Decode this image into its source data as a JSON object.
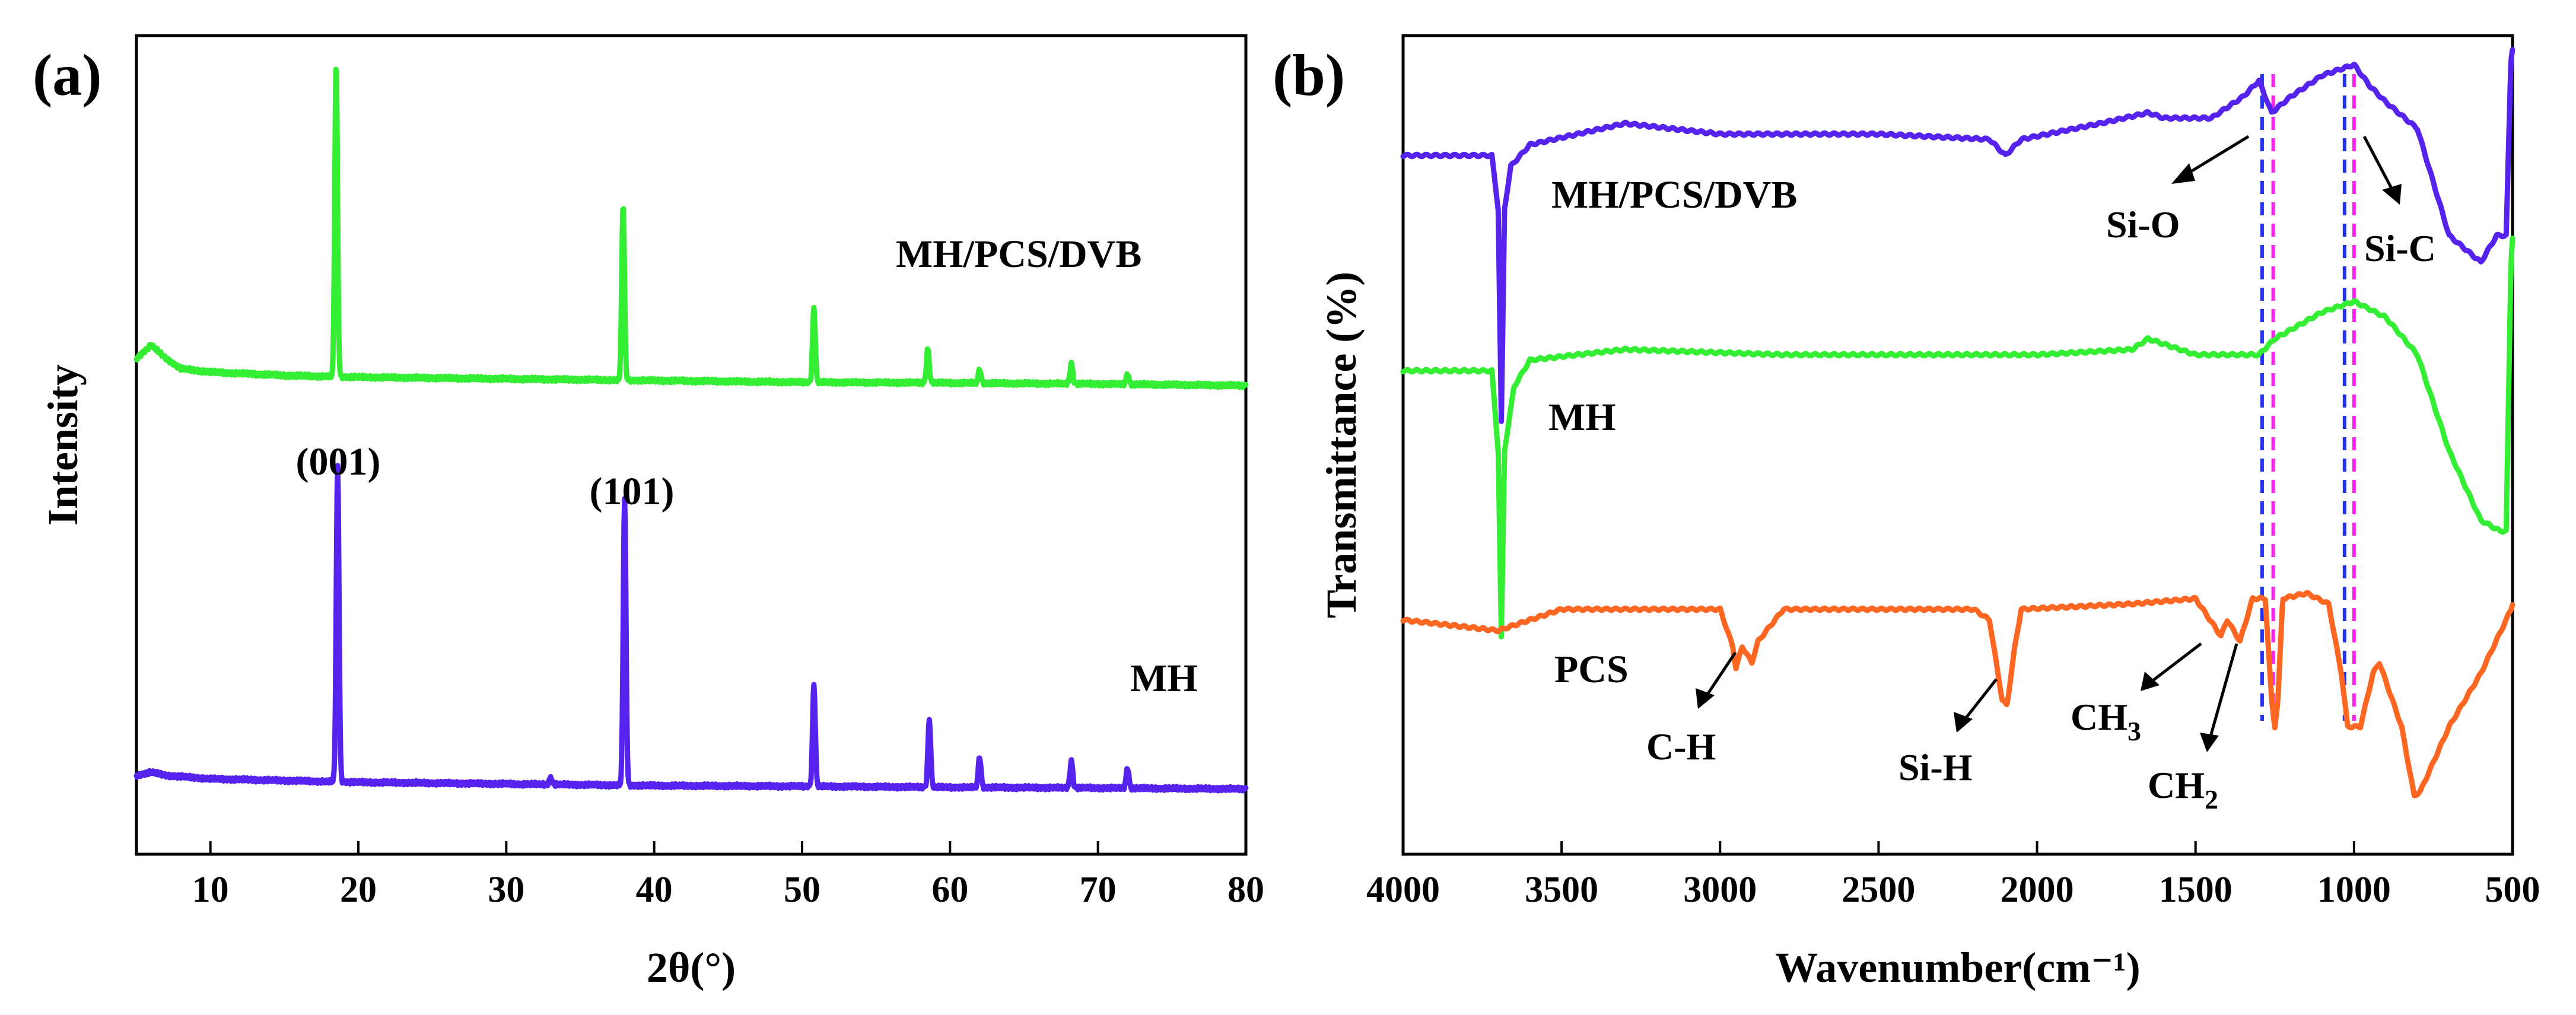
{
  "chart_data": [
    {
      "type": "line",
      "panel_label": "(a)",
      "xlabel": "2θ(°)",
      "ylabel": "Intensity",
      "xlim": [
        5,
        80
      ],
      "x_ticks": [
        10,
        20,
        30,
        40,
        50,
        60,
        70,
        80
      ],
      "y_ticks_shown": false,
      "peak_labels": [
        {
          "text": "(001)",
          "x": 18.6
        },
        {
          "text": "(101)",
          "x": 38.0
        }
      ],
      "series": [
        {
          "name": "MH/PCS/DVB",
          "color": "#33ee33",
          "baseline": [
            [
              5,
              0.08
            ],
            [
              6,
              0.12
            ],
            [
              7,
              0.08
            ],
            [
              8,
              0.05
            ],
            [
              10,
              0.04
            ],
            [
              15,
              0.03
            ],
            [
              20,
              0.025
            ],
            [
              30,
              0.02
            ],
            [
              40,
              0.015
            ],
            [
              50,
              0.01
            ],
            [
              60,
              0.008
            ],
            [
              70,
              0.005
            ],
            [
              80,
              0.0
            ]
          ],
          "peaks": [
            {
              "x": 18.5,
              "height": 0.93
            },
            {
              "x": 37.9,
              "height": 0.52
            },
            {
              "x": 50.8,
              "height": 0.22
            },
            {
              "x": 58.5,
              "height": 0.1
            },
            {
              "x": 62.0,
              "height": 0.04
            },
            {
              "x": 68.2,
              "height": 0.06
            },
            {
              "x": 72.0,
              "height": 0.03
            }
          ]
        },
        {
          "name": "MH",
          "color": "#5522ee",
          "baseline": [
            [
              5,
              0.04
            ],
            [
              6,
              0.05
            ],
            [
              7,
              0.04
            ],
            [
              10,
              0.03
            ],
            [
              20,
              0.02
            ],
            [
              30,
              0.015
            ],
            [
              40,
              0.01
            ],
            [
              50,
              0.008
            ],
            [
              60,
              0.005
            ],
            [
              70,
              0.003
            ],
            [
              80,
              0.0
            ]
          ],
          "peaks": [
            {
              "x": 18.6,
              "height": 0.93
            },
            {
              "x": 33.0,
              "height": 0.02
            },
            {
              "x": 38.0,
              "height": 0.85
            },
            {
              "x": 50.8,
              "height": 0.3
            },
            {
              "x": 58.6,
              "height": 0.2
            },
            {
              "x": 62.0,
              "height": 0.09
            },
            {
              "x": 68.2,
              "height": 0.08
            },
            {
              "x": 72.0,
              "height": 0.06
            }
          ]
        }
      ]
    },
    {
      "type": "line",
      "panel_label": "(b)",
      "xlabel": "Wavenumber(cm⁻¹)",
      "ylabel": "Transmittance (%)",
      "xlim": [
        4000,
        500
      ],
      "x_ticks": [
        4000,
        3500,
        3000,
        2500,
        2000,
        1500,
        1000,
        500
      ],
      "y_ticks_shown": false,
      "reference_lines": [
        {
          "x": 1290,
          "color": "#2233ee"
        },
        {
          "x": 1255,
          "color": "#ff22ee"
        },
        {
          "x": 1030,
          "color": "#2233ee"
        },
        {
          "x": 1000,
          "color": "#ff22ee"
        }
      ],
      "band_labels": [
        {
          "text": "Si-O",
          "series": "MH/PCS/DVB"
        },
        {
          "text": "Si-C",
          "series": "MH/PCS/DVB"
        },
        {
          "text": "C-H",
          "series": "PCS"
        },
        {
          "text": "Si-H",
          "series": "PCS"
        },
        {
          "text": "CH",
          "sub": "3",
          "series": "PCS"
        },
        {
          "text": "CH",
          "sub": "2",
          "series": "PCS"
        }
      ],
      "series": [
        {
          "name": "MH/PCS/DVB",
          "color": "#5522ee",
          "points": [
            [
              4000,
              0
            ],
            [
              3800,
              0
            ],
            [
              3720,
              0
            ],
            [
              3700,
              -0.1
            ],
            [
              3690,
              -0.5
            ],
            [
              3680,
              -0.1
            ],
            [
              3660,
              -0.02
            ],
            [
              3600,
              0.02
            ],
            [
              3300,
              0.06
            ],
            [
              3000,
              0.04
            ],
            [
              2500,
              0.04
            ],
            [
              2150,
              0.03
            ],
            [
              2100,
              0.0
            ],
            [
              2050,
              0.03
            ],
            [
              1800,
              0.06
            ],
            [
              1650,
              0.08
            ],
            [
              1600,
              0.07
            ],
            [
              1450,
              0.07
            ],
            [
              1350,
              0.11
            ],
            [
              1300,
              0.14
            ],
            [
              1260,
              0.08
            ],
            [
              1200,
              0.11
            ],
            [
              1100,
              0.15
            ],
            [
              1000,
              0.17
            ],
            [
              950,
              0.13
            ],
            [
              900,
              0.1
            ],
            [
              800,
              0.05
            ],
            [
              700,
              -0.15
            ],
            [
              600,
              -0.2
            ],
            [
              550,
              -0.15
            ],
            [
              520,
              -0.15
            ],
            [
              505,
              0.18
            ],
            [
              500,
              0.2
            ]
          ]
        },
        {
          "name": "MH",
          "color": "#33ee33",
          "points": [
            [
              4000,
              0
            ],
            [
              3720,
              0
            ],
            [
              3700,
              -0.15
            ],
            [
              3690,
              -0.5
            ],
            [
              3680,
              -0.15
            ],
            [
              3650,
              -0.03
            ],
            [
              3600,
              0.02
            ],
            [
              3300,
              0.04
            ],
            [
              2800,
              0.03
            ],
            [
              2000,
              0.03
            ],
            [
              1700,
              0.04
            ],
            [
              1650,
              0.06
            ],
            [
              1500,
              0.03
            ],
            [
              1300,
              0.03
            ],
            [
              1250,
              0.06
            ],
            [
              1100,
              0.11
            ],
            [
              1000,
              0.13
            ],
            [
              900,
              0.1
            ],
            [
              800,
              0.03
            ],
            [
              700,
              -0.15
            ],
            [
              600,
              -0.28
            ],
            [
              540,
              -0.3
            ],
            [
              520,
              -0.3
            ],
            [
              505,
              0.2
            ],
            [
              500,
              0.25
            ]
          ]
        },
        {
          "name": "PCS",
          "color": "#ff6622",
          "points": [
            [
              4000,
              0
            ],
            [
              3700,
              -0.02
            ],
            [
              3500,
              0.02
            ],
            [
              3000,
              0.02
            ],
            [
              2960,
              -0.05
            ],
            [
              2950,
              -0.09
            ],
            [
              2930,
              -0.05
            ],
            [
              2900,
              -0.08
            ],
            [
              2880,
              -0.04
            ],
            [
              2800,
              0.02
            ],
            [
              2200,
              0.02
            ],
            [
              2150,
              0.0
            ],
            [
              2110,
              -0.15
            ],
            [
              2095,
              -0.16
            ],
            [
              2070,
              -0.05
            ],
            [
              2050,
              0.02
            ],
            [
              1700,
              0.03
            ],
            [
              1500,
              0.04
            ],
            [
              1420,
              -0.03
            ],
            [
              1400,
              0.0
            ],
            [
              1360,
              -0.04
            ],
            [
              1320,
              0.04
            ],
            [
              1280,
              0.04
            ],
            [
              1260,
              -0.15
            ],
            [
              1250,
              -0.2
            ],
            [
              1240,
              -0.15
            ],
            [
              1225,
              0.04
            ],
            [
              1150,
              0.05
            ],
            [
              1080,
              0.03
            ],
            [
              1040,
              -0.1
            ],
            [
              1020,
              -0.2
            ],
            [
              980,
              -0.2
            ],
            [
              940,
              -0.1
            ],
            [
              920,
              -0.08
            ],
            [
              850,
              -0.2
            ],
            [
              810,
              -0.33
            ],
            [
              790,
              -0.32
            ],
            [
              760,
              -0.28
            ],
            [
              700,
              -0.2
            ],
            [
              600,
              -0.1
            ],
            [
              520,
              0.0
            ],
            [
              505,
              0.02
            ],
            [
              500,
              0.03
            ]
          ]
        }
      ]
    }
  ]
}
